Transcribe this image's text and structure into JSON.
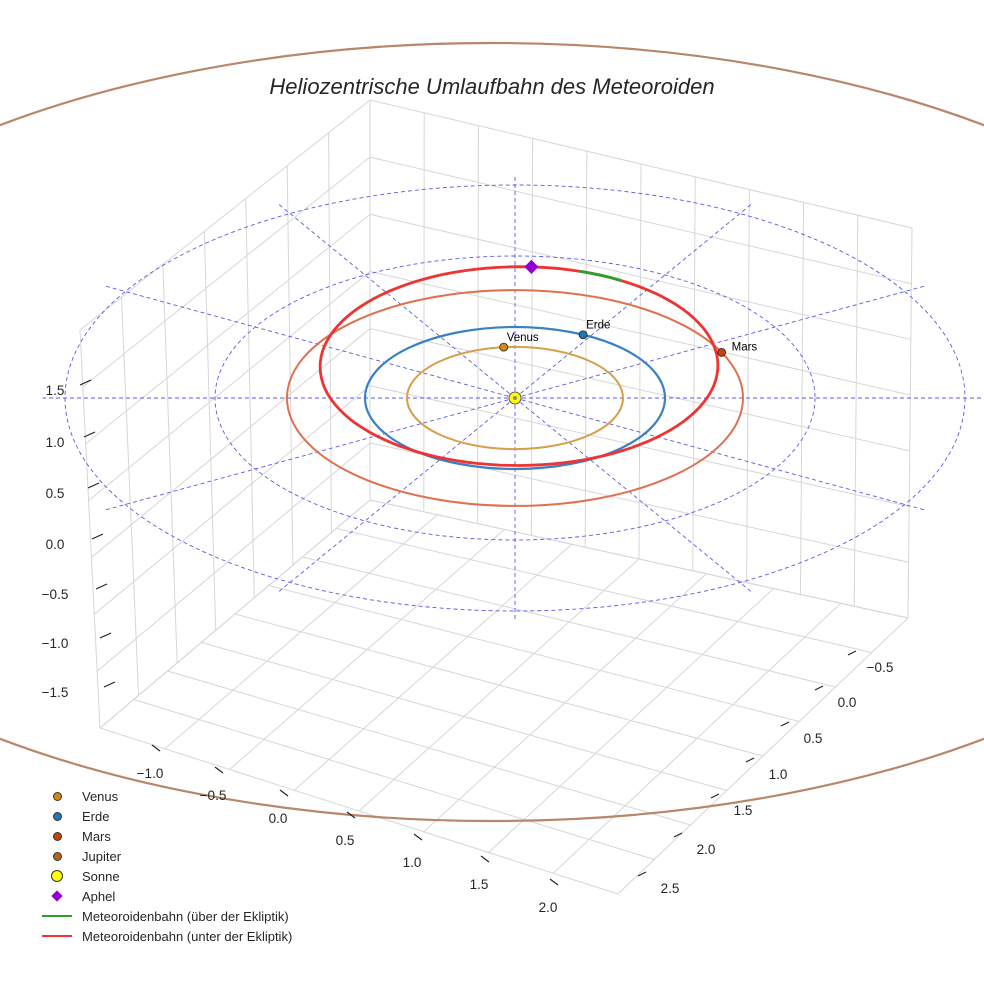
{
  "chart_data": {
    "type": "3d-orbit",
    "title": "Heliozentrische Umlaufbahn des Meteoroiden",
    "x_ticks": [
      "−1.0",
      "−0.5",
      "0.0",
      "0.5",
      "1.0",
      "1.5",
      "2.0"
    ],
    "y_ticks": [
      "−0.5",
      "0.0",
      "0.5",
      "1.0",
      "1.5",
      "2.0",
      "2.5"
    ],
    "z_ticks": [
      "1.5",
      "1.0",
      "0.5",
      "0.0",
      "−0.5",
      "−1.0",
      "−1.5"
    ],
    "orbits": [
      {
        "name": "Venus",
        "radius_au": 0.72,
        "color": "#d4a14a"
      },
      {
        "name": "Erde",
        "radius_au": 1.0,
        "color": "#3b7fc4"
      },
      {
        "name": "Mars",
        "radius_au": 1.52,
        "color": "#e07050"
      },
      {
        "name": "Jupiter",
        "radius_au": 5.2,
        "color": "#b8866a"
      }
    ],
    "reference_circles_au": [
      1.0,
      2.0,
      3.0
    ],
    "planets": [
      {
        "name": "Venus",
        "label": "Venus",
        "angle_deg": 96,
        "color": "#d4881a"
      },
      {
        "name": "Erde",
        "label": "Erde",
        "angle_deg": 63,
        "color": "#1f77b4"
      },
      {
        "name": "Mars",
        "label": "Mars",
        "angle_deg": 25,
        "color": "#c1440e"
      }
    ],
    "sun": {
      "name": "Sonne",
      "color": "#ffff00"
    },
    "aphel": {
      "name": "Aphel",
      "color": "#9400d3"
    },
    "meteoroid_orbit": {
      "perihelion_au": 0.95,
      "aphelion_au": 1.85,
      "above_color": "#2ca02c",
      "below_color": "#ee3333"
    }
  },
  "legend": {
    "items": [
      {
        "label": "Venus",
        "color": "#d4881a"
      },
      {
        "label": "Erde",
        "color": "#1f77b4"
      },
      {
        "label": "Mars",
        "color": "#c1440e"
      },
      {
        "label": "Jupiter",
        "color": "#b5651d"
      },
      {
        "label": "Sonne",
        "color": "#ffff00"
      },
      {
        "label": "Aphel",
        "color": "#9400d3"
      },
      {
        "label": "Meteoroidenbahn (über der Ekliptik)",
        "color": "#2ca02c"
      },
      {
        "label": "Meteoroidenbahn (unter der Ekliptik)",
        "color": "#ee3333"
      }
    ]
  }
}
